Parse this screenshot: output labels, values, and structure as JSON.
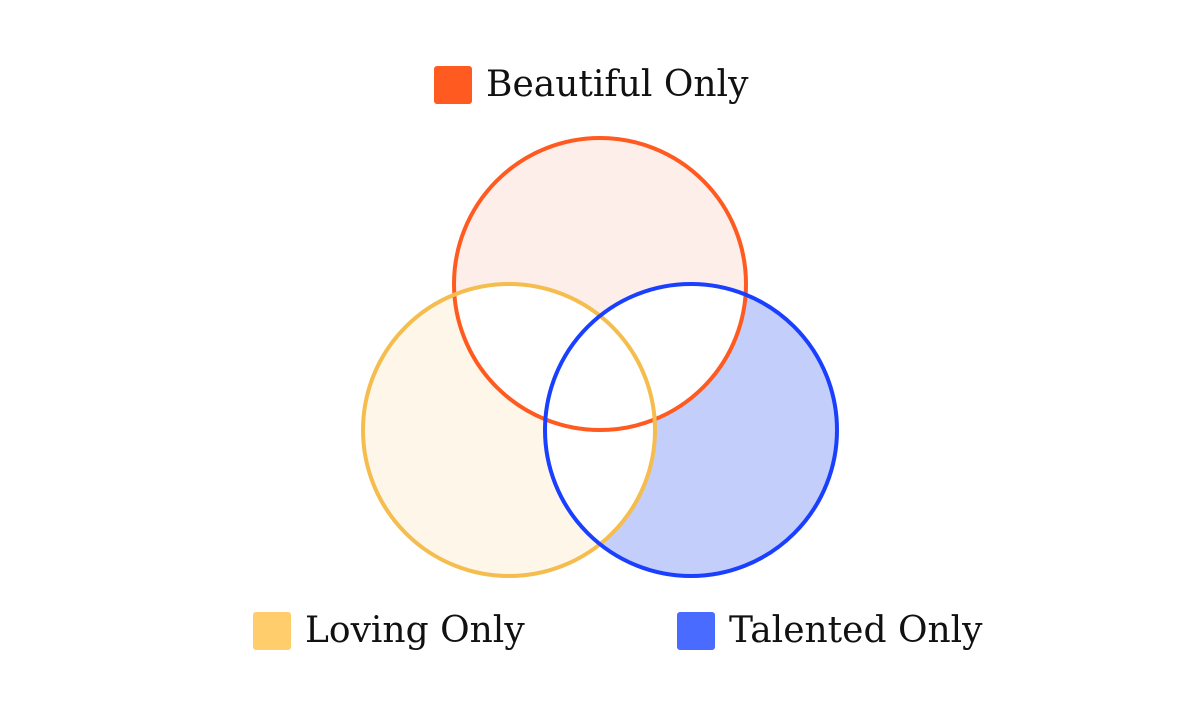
{
  "venn": {
    "sets": [
      {
        "id": "beautiful",
        "label": "Beautiful Only",
        "stroke": "#FF5A1F",
        "fill": "#FDEEEA",
        "swatch": "#FF5A1F"
      },
      {
        "id": "loving",
        "label": "Loving Only",
        "stroke": "#F5BC4E",
        "fill": "#FDF6E9",
        "swatch": "#FFCD6B"
      },
      {
        "id": "talented",
        "label": "Talented Only",
        "stroke": "#1A3FFF",
        "fill": "#C3CEFB",
        "swatch": "#4A6BFF"
      }
    ],
    "overlap_fill": "#FFFFFF"
  }
}
